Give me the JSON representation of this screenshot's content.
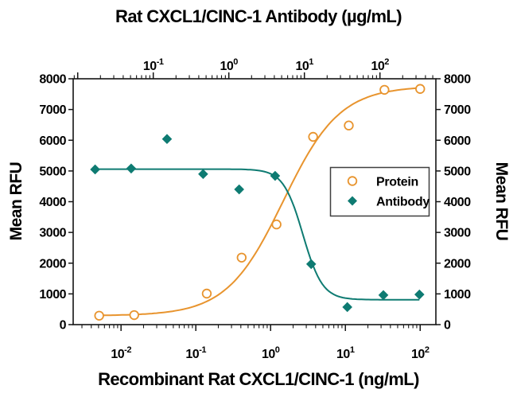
{
  "figure": {
    "title_top": "Rat CXCL1/CINC-1 Antibody (µg/mL)",
    "xlabel_bottom": "Recombinant Rat CXCL1/CINC-1 (ng/mL)",
    "ylabel_left": "Mean RFU",
    "ylabel_right": "Mean RFU"
  },
  "chart_data": {
    "type": "scatter",
    "subtype": "dose-response with 4PL fit curves",
    "background": "#ffffff",
    "frame_color": "#141414",
    "y_axis": {
      "label": "Mean RFU",
      "min": 0,
      "max": 8000,
      "ticks": [
        0,
        1000,
        2000,
        3000,
        4000,
        5000,
        6000,
        7000,
        8000
      ],
      "sides": [
        "left",
        "right"
      ],
      "grid": false
    },
    "x_axis_bottom": {
      "label": "Recombinant Rat CXCL1/CINC-1 (ng/mL)",
      "scale": "log10",
      "decade_labels": [
        -2,
        -1,
        0,
        1,
        2
      ],
      "log_range": [
        -2.64,
        2.21
      ]
    },
    "x_axis_top": {
      "label": "Rat CXCL1/CINC-1 Antibody (µg/mL)",
      "scale": "log10",
      "decade_labels": [
        -1,
        0,
        1,
        2
      ],
      "log_range": [
        -2.06,
        2.74
      ]
    },
    "legend": {
      "position": "middle-right-inside",
      "items": [
        {
          "label": "Protein",
          "marker": "open-circle",
          "color": "#E8942E"
        },
        {
          "label": "Antibody",
          "marker": "filled-diamond",
          "color": "#0E7B72"
        }
      ]
    },
    "series": [
      {
        "name": "Protein",
        "axis": "bottom",
        "units": "ng/mL",
        "marker": "open-circle",
        "color": "#E8942E",
        "points": [
          [
            0.0051,
            290
          ],
          [
            0.015,
            310
          ],
          [
            0.14,
            1010
          ],
          [
            0.41,
            2180
          ],
          [
            1.2,
            3260
          ],
          [
            3.7,
            6110
          ],
          [
            11.1,
            6480
          ],
          [
            33.3,
            7640
          ],
          [
            100,
            7670
          ]
        ],
        "fit": {
          "model": "4PL",
          "bottom": 290,
          "top": 7760,
          "mid": 0.17,
          "hill": 1.15
        }
      },
      {
        "name": "Antibody",
        "axis": "top",
        "units": "µg/mL",
        "marker": "filled-diamond",
        "color": "#0E7B72",
        "points": [
          [
            0.017,
            5050
          ],
          [
            0.051,
            5080
          ],
          [
            0.152,
            6040
          ],
          [
            0.457,
            4900
          ],
          [
            1.37,
            4400
          ],
          [
            4.1,
            4840
          ],
          [
            12.3,
            1970
          ],
          [
            37,
            570
          ],
          [
            111,
            960
          ],
          [
            333,
            980
          ]
        ],
        "fit": {
          "model": "4PL",
          "bottom": 810,
          "top": 5060,
          "mid": 0.98,
          "hill": -3.36
        }
      }
    ]
  }
}
